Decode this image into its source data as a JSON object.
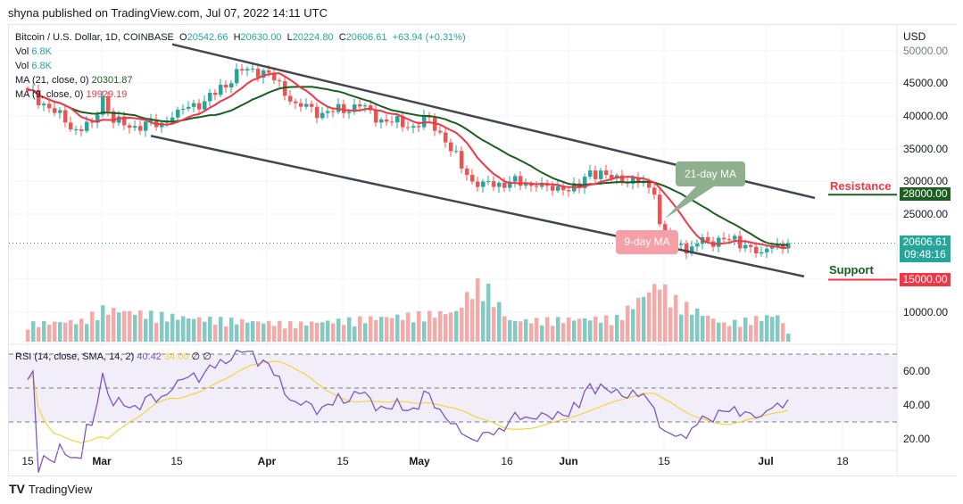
{
  "header": {
    "published": "shyna published on TradingView.com, Jul 07, 2022 14:11 UTC"
  },
  "legend": {
    "symbol": "Bitcoin / U.S. Dollar, 1D, COINBASE",
    "o_label": "O",
    "o": "20542.66",
    "h_label": "H",
    "h": "20630.00",
    "l_label": "L",
    "l": "20224.80",
    "c_label": "C",
    "c": "20606.61",
    "change": "+63.94 (+0.31%)",
    "vol1_label": "Vol",
    "vol1": "6.8K",
    "vol2_label": "Vol",
    "vol2": "6.8K",
    "ma21_label": "MA (21, close, 0)",
    "ma21": "20301.87",
    "ma9_label": "MA (9, close, 0)",
    "ma9": "19929.19",
    "rsi_label": "RSI (14, close, SMA, 14, 2)",
    "rsi": "40.42",
    "rsi_sma": "34.00",
    "rsi_x1": "∅",
    "rsi_x2": "∅"
  },
  "price_axis": {
    "currency": "USD",
    "ticks": [
      "50000.00",
      "45000.00",
      "40000.00",
      "35000.00",
      "30000.00",
      "25000.00",
      "10000.00"
    ],
    "last_price": "20606.61",
    "countdown": "09:48:16",
    "resistance_value": "28000.00",
    "support_value": "15000.00"
  },
  "rsi_axis": {
    "ticks": [
      "60.00",
      "40.00",
      "20.00"
    ]
  },
  "x_axis": {
    "ticks": [
      "15",
      "Mar",
      "15",
      "Apr",
      "15",
      "May",
      "16",
      "Jun",
      "15",
      "Jul",
      "18"
    ]
  },
  "annotations": {
    "resistance": "Resistance",
    "support": "Support",
    "ma21_note": "21-day MA",
    "ma9_note": "9-day MA"
  },
  "footer": {
    "brand": "TradingView"
  },
  "colors": {
    "up": "#26a69a",
    "down": "#ef5350",
    "ma21": "#1b5e20",
    "ma9": "#f23645",
    "rsi": "#7e57c2",
    "rsi_sma": "#f5d53a",
    "resistance": "#1b5e20",
    "support": "#f23645"
  },
  "chart_data": {
    "type": "candlestick",
    "ylim": [
      13000,
      52000
    ],
    "interval": "1D",
    "start": "2022-02-15",
    "end": "2022-07-07",
    "close_keypoints": [
      [
        "2022-02-15",
        44000
      ],
      [
        "2022-02-20",
        40500
      ],
      [
        "2022-02-24",
        38000
      ],
      [
        "2022-02-27",
        39000
      ],
      [
        "2022-03-01",
        43000
      ],
      [
        "2022-03-03",
        39000
      ],
      [
        "2022-03-07",
        38500
      ],
      [
        "2022-03-12",
        39000
      ],
      [
        "2022-03-15",
        41000
      ],
      [
        "2022-03-20",
        42300
      ],
      [
        "2022-03-27",
        47000
      ],
      [
        "2022-03-31",
        47000
      ],
      [
        "2022-04-02",
        45500
      ],
      [
        "2022-04-06",
        42000
      ],
      [
        "2022-04-11",
        40500
      ],
      [
        "2022-04-18",
        41500
      ],
      [
        "2022-04-22",
        39500
      ],
      [
        "2022-04-28",
        38500
      ],
      [
        "2022-05-01",
        39800
      ],
      [
        "2022-05-04",
        36000
      ],
      [
        "2022-05-09",
        30000
      ],
      [
        "2022-05-11",
        30000
      ],
      [
        "2022-05-13",
        29200
      ],
      [
        "2022-05-16",
        30000
      ],
      [
        "2022-05-21",
        29200
      ],
      [
        "2022-05-26",
        28700
      ],
      [
        "2022-05-29",
        29000
      ],
      [
        "2022-05-31",
        31700
      ],
      [
        "2022-06-06",
        30000
      ],
      [
        "2022-06-10",
        30100
      ],
      [
        "2022-06-12",
        28000
      ],
      [
        "2022-06-13",
        23500
      ],
      [
        "2022-06-14",
        22300
      ],
      [
        "2022-06-16",
        20300
      ],
      [
        "2022-06-17",
        20500
      ],
      [
        "2022-06-18",
        19000
      ],
      [
        "2022-06-20",
        20500
      ],
      [
        "2022-06-25",
        21200
      ],
      [
        "2022-06-29",
        20300
      ],
      [
        "2022-07-02",
        19200
      ],
      [
        "2022-07-04",
        20000
      ],
      [
        "2022-07-07",
        20606.61
      ]
    ],
    "volume_keypoints": [
      [
        0,
        0.3
      ],
      [
        10,
        0.35
      ],
      [
        14,
        0.55
      ],
      [
        30,
        0.4
      ],
      [
        50,
        0.3
      ],
      [
        80,
        0.5
      ],
      [
        83,
        0.9
      ],
      [
        85,
        1.0
      ],
      [
        90,
        0.35
      ],
      [
        110,
        0.4
      ],
      [
        118,
        1.0
      ],
      [
        120,
        0.75
      ],
      [
        123,
        0.6
      ],
      [
        130,
        0.3
      ],
      [
        140,
        0.45
      ],
      [
        142,
        0.15
      ]
    ],
    "trendlines": [
      {
        "name": "upper channel",
        "from": [
          "2022-03-14",
          51000
        ],
        "to": [
          "2022-07-12",
          27500
        ]
      },
      {
        "name": "lower channel",
        "from": [
          "2022-03-10",
          37000
        ],
        "to": [
          "2022-07-10",
          15500
        ]
      }
    ],
    "levels": {
      "resistance": 28000,
      "support": 15000
    },
    "rsi": {
      "period": 14,
      "sma": 14,
      "upper": 70,
      "lower": 30,
      "ylim": [
        14,
        75
      ]
    }
  }
}
